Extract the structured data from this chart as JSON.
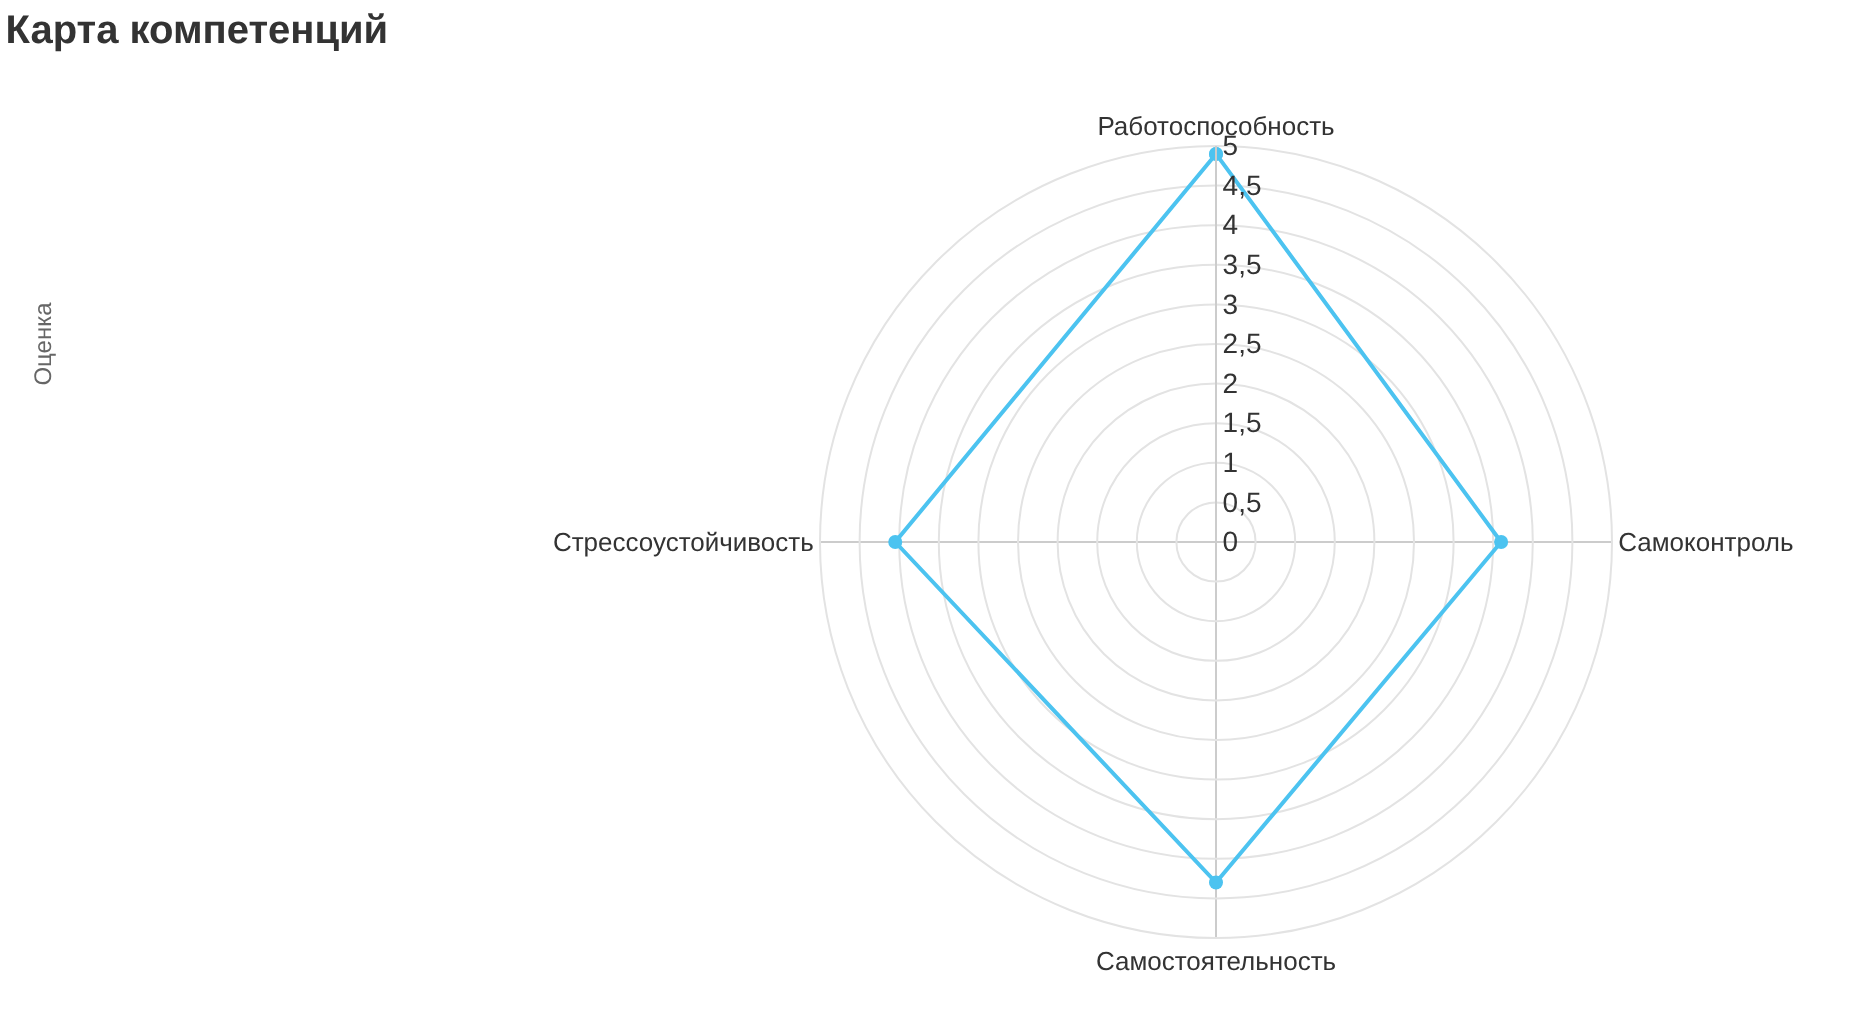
{
  "chart_data": {
    "type": "radar",
    "title": "Карта компетенций",
    "ylabel": "Оценка",
    "categories": [
      "Работоспособность",
      "Самоконтроль",
      "Самостоятельность",
      "Стрессоустойчивость"
    ],
    "series": [
      {
        "color": "#4cc3f0",
        "values": [
          4.9,
          3.6,
          4.3,
          4.05
        ]
      }
    ],
    "ylim": [
      0,
      5
    ],
    "yticks": [
      0,
      {
        "value": 0.5,
        "label": "0,5"
      },
      1,
      {
        "value": 1.5,
        "label": "1,5"
      },
      2,
      {
        "value": 2.5,
        "label": "2,5"
      },
      3,
      {
        "value": 3.5,
        "label": "3,5"
      },
      4,
      {
        "value": 4.5,
        "label": "4,5"
      },
      5
    ],
    "grid": true,
    "marker": "circle"
  }
}
